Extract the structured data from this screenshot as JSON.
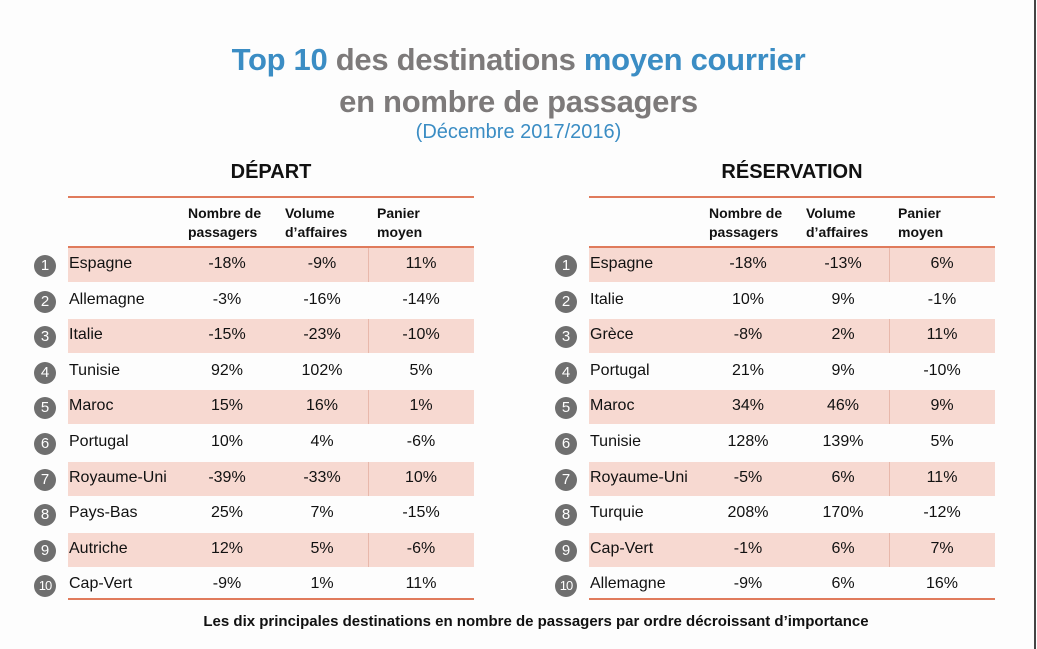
{
  "title": {
    "line1": [
      {
        "text": "Top 10",
        "color": "blue"
      },
      {
        "text": " des destinations ",
        "color": "grey"
      },
      {
        "text": "moyen courrier",
        "color": "blue"
      }
    ],
    "line2": "en nombre de passagers",
    "period": "(Décembre 2017/2016)"
  },
  "colors": {
    "accent_blue": "#3b8dc4",
    "title_grey": "#7d7a7a",
    "rule_orange": "#e07b5c",
    "row_shade": "#f7d9d1",
    "badge_grey": "#6f6f6f"
  },
  "columns": {
    "c1": [
      "Nombre de",
      "passagers"
    ],
    "c2": [
      "Volume",
      "d’affaires"
    ],
    "c3": [
      "Panier",
      "moyen"
    ]
  },
  "depart": {
    "title": "DÉPART",
    "rows": [
      {
        "rank": "1",
        "country": "Espagne",
        "passagers": "-18%",
        "volume": "-9%",
        "panier": "11%"
      },
      {
        "rank": "2",
        "country": "Allemagne",
        "passagers": "-3%",
        "volume": "-16%",
        "panier": "-14%"
      },
      {
        "rank": "3",
        "country": "Italie",
        "passagers": "-15%",
        "volume": "-23%",
        "panier": "-10%"
      },
      {
        "rank": "4",
        "country": "Tunisie",
        "passagers": "92%",
        "volume": "102%",
        "panier": "5%"
      },
      {
        "rank": "5",
        "country": "Maroc",
        "passagers": "15%",
        "volume": "16%",
        "panier": "1%"
      },
      {
        "rank": "6",
        "country": "Portugal",
        "passagers": "10%",
        "volume": "4%",
        "panier": "-6%"
      },
      {
        "rank": "7",
        "country": "Royaume-Uni",
        "passagers": "-39%",
        "volume": "-33%",
        "panier": "10%"
      },
      {
        "rank": "8",
        "country": "Pays-Bas",
        "passagers": "25%",
        "volume": "7%",
        "panier": "-15%"
      },
      {
        "rank": "9",
        "country": "Autriche",
        "passagers": "12%",
        "volume": "5%",
        "panier": "-6%"
      },
      {
        "rank": "10",
        "country": "Cap-Vert",
        "passagers": "-9%",
        "volume": "1%",
        "panier": "11%"
      }
    ]
  },
  "reservation": {
    "title": "RÉSERVATION",
    "rows": [
      {
        "rank": "1",
        "country": "Espagne",
        "passagers": "-18%",
        "volume": "-13%",
        "panier": "6%"
      },
      {
        "rank": "2",
        "country": "Italie",
        "passagers": "10%",
        "volume": "9%",
        "panier": "-1%"
      },
      {
        "rank": "3",
        "country": "Grèce",
        "passagers": "-8%",
        "volume": "2%",
        "panier": "11%"
      },
      {
        "rank": "4",
        "country": "Portugal",
        "passagers": "21%",
        "volume": "9%",
        "panier": "-10%"
      },
      {
        "rank": "5",
        "country": "Maroc",
        "passagers": "34%",
        "volume": "46%",
        "panier": "9%"
      },
      {
        "rank": "6",
        "country": "Tunisie",
        "passagers": "128%",
        "volume": "139%",
        "panier": "5%"
      },
      {
        "rank": "7",
        "country": "Royaume-Uni",
        "passagers": "-5%",
        "volume": "6%",
        "panier": "11%"
      },
      {
        "rank": "8",
        "country": "Turquie",
        "passagers": "208%",
        "volume": "170%",
        "panier": "-12%"
      },
      {
        "rank": "9",
        "country": "Cap-Vert",
        "passagers": "-1%",
        "volume": "6%",
        "panier": "7%"
      },
      {
        "rank": "10",
        "country": "Allemagne",
        "passagers": "-9%",
        "volume": "6%",
        "panier": "16%"
      }
    ]
  },
  "footnote": "Les dix principales destinations en nombre de passagers par ordre décroissant d’importance"
}
